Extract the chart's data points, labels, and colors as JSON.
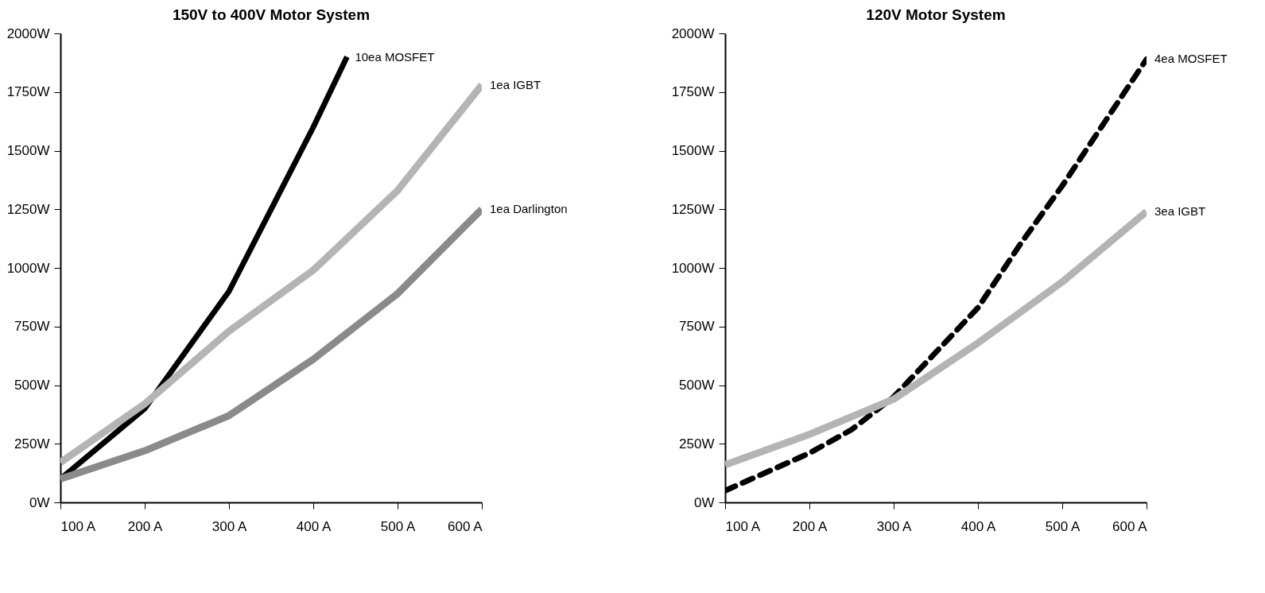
{
  "chart_data": [
    {
      "type": "line",
      "title": "150V to 400V Motor System",
      "grid": false,
      "marker": "none",
      "legend": false,
      "xlim": [
        100,
        600
      ],
      "ylim": [
        0,
        2000
      ],
      "xticks": [
        {
          "value": 100,
          "label": "100 A"
        },
        {
          "value": 200,
          "label": "200 A"
        },
        {
          "value": 300,
          "label": "300 A"
        },
        {
          "value": 400,
          "label": "400 A"
        },
        {
          "value": 500,
          "label": "500 A"
        },
        {
          "value": 600,
          "label": "600 A"
        }
      ],
      "yticks": [
        {
          "value": 0,
          "label": "0W"
        },
        {
          "value": 250,
          "label": "250W"
        },
        {
          "value": 500,
          "label": "500W"
        },
        {
          "value": 750,
          "label": "750W"
        },
        {
          "value": 1000,
          "label": "1000W"
        },
        {
          "value": 1250,
          "label": "1250W"
        },
        {
          "value": 1500,
          "label": "1500W"
        },
        {
          "value": 1750,
          "label": "1750W"
        },
        {
          "value": 2000,
          "label": "2000W"
        }
      ],
      "series": [
        {
          "name": "10ea MOSFET",
          "color": "#000000",
          "line_style": "solid",
          "x": [
            100,
            200,
            300,
            400,
            440
          ],
          "values": [
            100,
            400,
            900,
            1600,
            1900
          ]
        },
        {
          "name": "1ea IGBT",
          "color": "#b4b4b4",
          "line_style": "solid",
          "x": [
            100,
            200,
            300,
            400,
            500,
            600
          ],
          "values": [
            170,
            420,
            730,
            990,
            1330,
            1780
          ]
        },
        {
          "name": "1ea Darlington",
          "color": "#8a8a8a",
          "line_style": "solid",
          "x": [
            100,
            200,
            300,
            400,
            500,
            600
          ],
          "values": [
            100,
            220,
            370,
            610,
            890,
            1250
          ]
        }
      ]
    },
    {
      "type": "line",
      "title": "120V Motor System",
      "grid": false,
      "marker": "none",
      "legend": false,
      "xlim": [
        100,
        600
      ],
      "ylim": [
        0,
        2000
      ],
      "xticks": [
        {
          "value": 100,
          "label": "100 A"
        },
        {
          "value": 200,
          "label": "200 A"
        },
        {
          "value": 300,
          "label": "300 A"
        },
        {
          "value": 400,
          "label": "400 A"
        },
        {
          "value": 500,
          "label": "500 A"
        },
        {
          "value": 600,
          "label": "600 A"
        }
      ],
      "yticks": [
        {
          "value": 0,
          "label": "0W"
        },
        {
          "value": 250,
          "label": "250W"
        },
        {
          "value": 500,
          "label": "500W"
        },
        {
          "value": 750,
          "label": "750W"
        },
        {
          "value": 1000,
          "label": "1000W"
        },
        {
          "value": 1250,
          "label": "1250W"
        },
        {
          "value": 1500,
          "label": "1500W"
        },
        {
          "value": 1750,
          "label": "1750W"
        },
        {
          "value": 2000,
          "label": "2000W"
        }
      ],
      "series": [
        {
          "name": "4ea MOSFET",
          "color": "#000000",
          "line_style": "dashed",
          "x": [
            100,
            200,
            250,
            300,
            350,
            400,
            450,
            500,
            550,
            600
          ],
          "values": [
            50,
            210,
            310,
            450,
            640,
            830,
            1100,
            1350,
            1620,
            1890
          ]
        },
        {
          "name": "3ea IGBT",
          "color": "#b4b4b4",
          "line_style": "solid",
          "x": [
            100,
            200,
            300,
            400,
            500,
            600
          ],
          "values": [
            160,
            290,
            440,
            680,
            940,
            1240
          ]
        }
      ]
    }
  ]
}
